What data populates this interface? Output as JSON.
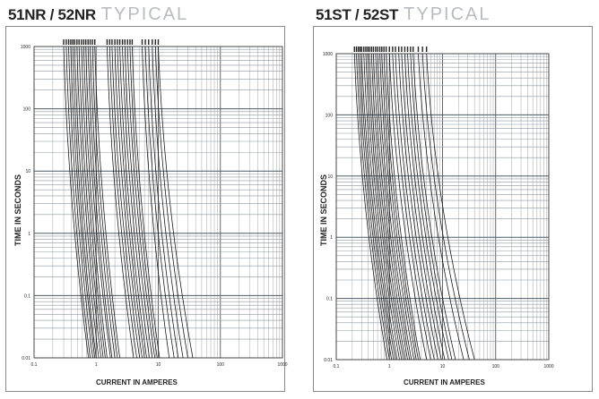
{
  "chart_data": [
    {
      "type": "line",
      "title": "51NR / 52NR",
      "subtitle": "TYPICAL",
      "xlabel": "CURRENT IN AMPERES",
      "ylabel": "TIME IN SECONDS",
      "x_scale": "log",
      "y_scale": "log",
      "xlim": [
        0.1,
        1000
      ],
      "ylim": [
        0.01,
        1000
      ],
      "x_ticks": [
        "0.1",
        "1",
        "10",
        "100",
        "1000"
      ],
      "y_ticks": [
        "0.01",
        "0.1",
        "1",
        "10",
        "100",
        "1000"
      ],
      "grid": true,
      "curve_groups": [
        {
          "x_at_1000s": [
            0.3,
            0.33,
            0.36,
            0.39,
            0.42,
            0.45,
            0.49,
            0.53,
            0.58,
            0.63,
            0.68,
            0.74,
            0.8,
            0.87,
            0.95
          ],
          "x_at_0_01s": [
            0.75,
            0.8,
            0.88,
            0.95,
            1.0,
            1.1,
            1.2,
            1.3,
            1.4,
            1.5,
            1.7,
            1.8,
            2.0,
            2.2,
            2.4
          ]
        },
        {
          "x_at_1000s": [
            1.5,
            1.65,
            1.8,
            2.0,
            2.2,
            2.4,
            2.65,
            2.9,
            3.2,
            3.5,
            3.8
          ],
          "x_at_0_01s": [
            4.0,
            4.5,
            5.0,
            5.5,
            6.0,
            6.5,
            7.2,
            8.0,
            8.8,
            9.6,
            10.5
          ]
        },
        {
          "x_at_1000s": [
            5.5,
            6.2,
            7.0,
            8.0,
            9.0,
            10.0
          ],
          "x_at_0_01s": [
            15.0,
            18.0,
            21.0,
            25.0,
            30.0,
            36.0
          ]
        }
      ]
    },
    {
      "type": "line",
      "title": "51ST / 52ST",
      "subtitle": "TYPICAL",
      "xlabel": "CURRENT IN AMPERES",
      "ylabel": "TIME IN SECONDS",
      "x_scale": "log",
      "y_scale": "log",
      "xlim": [
        0.1,
        1000
      ],
      "ylim": [
        0.01,
        1000
      ],
      "x_ticks": [
        "0.1",
        "1",
        "10",
        "100",
        "1000"
      ],
      "y_ticks": [
        "0.01",
        "0.1",
        "1",
        "10",
        "100",
        "1000"
      ],
      "grid": true,
      "curve_groups": [
        {
          "x_at_1000s": [
            0.22,
            0.24,
            0.26,
            0.28,
            0.3,
            0.33,
            0.36,
            0.39,
            0.42,
            0.46,
            0.5,
            0.55,
            0.6,
            0.66,
            0.72,
            0.79,
            0.87
          ],
          "x_at_0_01s": [
            0.9,
            1.0,
            1.1,
            1.2,
            1.3,
            1.4,
            1.55,
            1.7,
            1.85,
            2.0,
            2.2,
            2.4,
            2.6,
            2.9,
            3.2,
            3.5,
            3.8
          ]
        },
        {
          "x_at_1000s": [
            1.0,
            1.15,
            1.3,
            1.5,
            1.7,
            1.95,
            2.2,
            2.5,
            2.8
          ],
          "x_at_0_01s": [
            5.0,
            6.0,
            7.0,
            8.2,
            9.5,
            11.0,
            13.0,
            15.0,
            17.5
          ]
        },
        {
          "x_at_1000s": [
            3.5,
            4.2,
            5.0
          ],
          "x_at_0_01s": [
            25.0,
            32.0,
            40.0
          ]
        }
      ]
    }
  ]
}
